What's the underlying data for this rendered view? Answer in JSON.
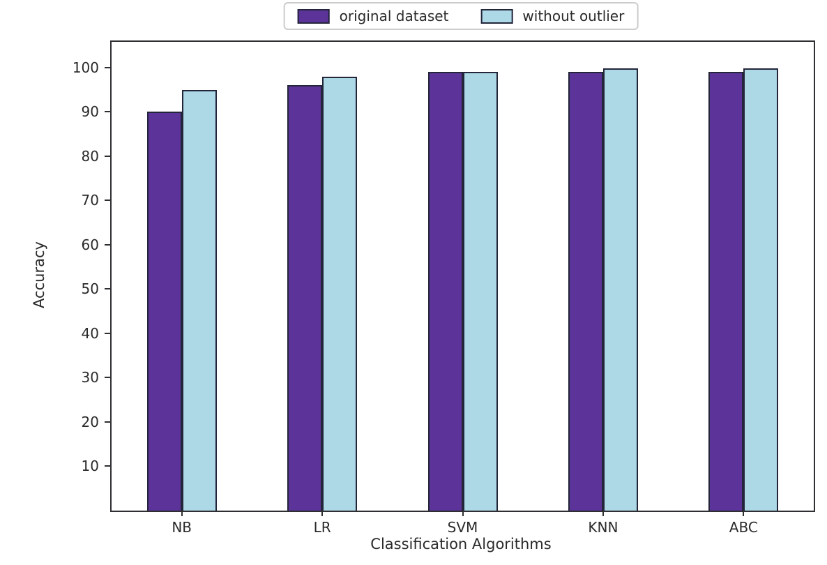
{
  "legend": {
    "items": [
      {
        "label": "original dataset",
        "color": "#5c3499"
      },
      {
        "label": "without outlier",
        "color": "#add8e6"
      }
    ],
    "border_color": "#cccccc"
  },
  "axes": {
    "ylabel": "Accuracy",
    "xlabel": "Classification Algorithms"
  },
  "chart_data": {
    "type": "bar",
    "categories": [
      "NB",
      "LR",
      "SVM",
      "KNN",
      "ABC"
    ],
    "series": [
      {
        "name": "original dataset",
        "color": "#5c3499",
        "values": [
          90,
          96,
          99,
          99,
          99
        ]
      },
      {
        "name": "without outlier",
        "color": "#add8e6",
        "values": [
          95,
          98,
          99,
          99.8,
          99.8
        ]
      }
    ],
    "title": "",
    "xlabel": "Classification Algorithms",
    "ylabel": "Accuracy",
    "yticks": [
      10,
      20,
      30,
      40,
      50,
      60,
      70,
      80,
      90,
      100
    ],
    "ylim": [
      0,
      105.8
    ],
    "grid": false,
    "legend_position": "top-center",
    "bar_edge_color": "#23263a",
    "axis_color": "#2f2f33"
  }
}
